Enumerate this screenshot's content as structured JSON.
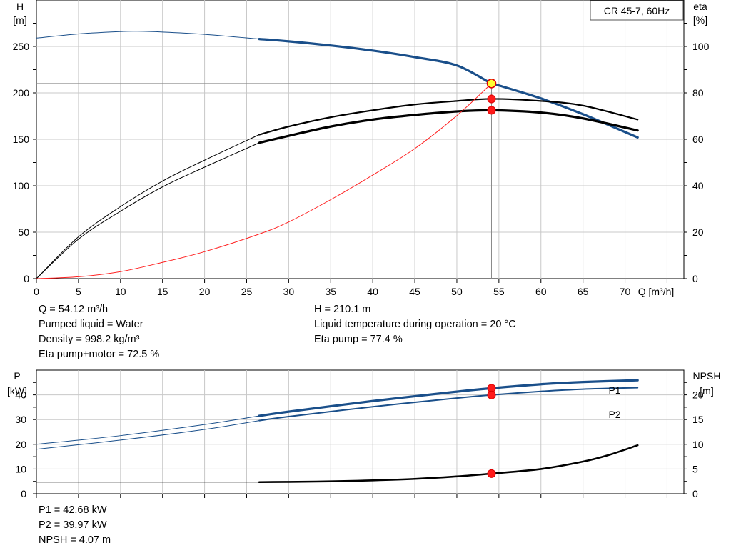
{
  "model_label": "CR 45-7, 60Hz",
  "chart_data": [
    {
      "type": "line",
      "name": "pump-curve",
      "x_label": "Q [m³/h]",
      "y_left_label": [
        "H",
        "[m]"
      ],
      "y_right_label": [
        "eta",
        "[%]"
      ],
      "xlim": [
        0,
        77
      ],
      "ylim_left": [
        0,
        300
      ],
      "ylim_right": [
        0,
        120
      ],
      "x_ticks": [
        0,
        5,
        10,
        15,
        20,
        25,
        30,
        35,
        40,
        45,
        50,
        55,
        60,
        65,
        70
      ],
      "y_left_ticks": [
        0,
        50,
        100,
        150,
        200,
        250
      ],
      "y_right_ticks": [
        0,
        20,
        40,
        60,
        80,
        100
      ],
      "grid": true,
      "series": [
        {
          "key": "head",
          "axis": "left",
          "color": "#1a4f8a",
          "thin_width": 1,
          "thick_width": 3.2,
          "thick_from": 26.5,
          "points": [
            [
              0,
              259
            ],
            [
              5,
              263.5
            ],
            [
              10,
              266
            ],
            [
              12,
              266.3
            ],
            [
              15,
              265.5
            ],
            [
              20,
              263
            ],
            [
              26.5,
              258
            ],
            [
              30,
              255.5
            ],
            [
              35,
              251
            ],
            [
              40,
              245.5
            ],
            [
              45,
              238.5
            ],
            [
              50,
              229.5
            ],
            [
              54.12,
              210.1
            ],
            [
              55,
              208
            ],
            [
              60,
              194
            ],
            [
              65,
              177
            ],
            [
              71.5,
              152
            ]
          ]
        },
        {
          "key": "eta_pump",
          "axis": "right",
          "color": "#000000",
          "thin_width": 1,
          "thick_width": 2.2,
          "thick_from": 26.5,
          "points": [
            [
              0,
              0
            ],
            [
              5,
              18
            ],
            [
              10,
              31
            ],
            [
              15,
              42
            ],
            [
              20,
              51
            ],
            [
              26.5,
              62
            ],
            [
              30,
              65.5
            ],
            [
              35,
              69.5
            ],
            [
              40,
              72.5
            ],
            [
              45,
              75
            ],
            [
              50,
              76.5
            ],
            [
              54.12,
              77.4
            ],
            [
              60,
              76.5
            ],
            [
              65,
              74.5
            ],
            [
              71.5,
              68.5
            ]
          ]
        },
        {
          "key": "eta_pump_motor",
          "axis": "right",
          "color": "#000000",
          "thin_width": 1,
          "thick_width": 3.2,
          "thick_from": 26.5,
          "points": [
            [
              0,
              0
            ],
            [
              5,
              17
            ],
            [
              10,
              29
            ],
            [
              15,
              39.5
            ],
            [
              20,
              48
            ],
            [
              26.5,
              58.5
            ],
            [
              30,
              61.5
            ],
            [
              35,
              65.5
            ],
            [
              40,
              68.5
            ],
            [
              45,
              70.5
            ],
            [
              50,
              72
            ],
            [
              54.12,
              72.5
            ],
            [
              60,
              71.5
            ],
            [
              65,
              69
            ],
            [
              71.5,
              63.8
            ]
          ]
        },
        {
          "key": "system_curve",
          "axis": "left",
          "color": "#ff2020",
          "thin_width": 1,
          "thick_width": 1,
          "thick_from": 999,
          "points": [
            [
              0,
              0
            ],
            [
              5,
              2
            ],
            [
              10,
              7.5
            ],
            [
              15,
              17.5
            ],
            [
              20,
              29
            ],
            [
              26.5,
              48
            ],
            [
              30,
              61
            ],
            [
              35,
              85
            ],
            [
              40,
              111.5
            ],
            [
              45,
              140
            ],
            [
              50,
              175.5
            ],
            [
              54.12,
              210.1
            ]
          ]
        }
      ],
      "operating_point": {
        "q": 54.12,
        "h": 210.1,
        "eta_pump": 77.4,
        "eta_pump_motor": 72.5
      }
    },
    {
      "type": "line",
      "name": "power-npsh",
      "y_left_label": [
        "P",
        "[kW]"
      ],
      "y_right_label": [
        "NPSH",
        "[m]"
      ],
      "xlim": [
        0,
        77
      ],
      "ylim_left": [
        0,
        50
      ],
      "ylim_right": [
        0,
        25
      ],
      "y_left_ticks": [
        0,
        10,
        20,
        30,
        40
      ],
      "y_right_ticks": [
        0,
        5,
        10,
        15,
        20
      ],
      "grid": true,
      "series": [
        {
          "key": "P1",
          "name": "P1",
          "axis": "left",
          "color": "#1a4f8a",
          "thin_width": 1,
          "thick_width": 3.2,
          "thick_from": 26.5,
          "points": [
            [
              0,
              20
            ],
            [
              10,
              23.5
            ],
            [
              20,
              28
            ],
            [
              26.5,
              31.5
            ],
            [
              30,
              33.2
            ],
            [
              40,
              37.5
            ],
            [
              50,
              41.3
            ],
            [
              54.12,
              42.68
            ],
            [
              60,
              44.3
            ],
            [
              65,
              45.2
            ],
            [
              71.5,
              45.9
            ]
          ]
        },
        {
          "key": "P2",
          "name": "P2",
          "axis": "left",
          "color": "#1a4f8a",
          "thin_width": 1,
          "thick_width": 2,
          "thick_from": 26.5,
          "points": [
            [
              0,
              18
            ],
            [
              10,
              21.7
            ],
            [
              20,
              26
            ],
            [
              26.5,
              29.6
            ],
            [
              30,
              31.2
            ],
            [
              40,
              35.2
            ],
            [
              50,
              38.7
            ],
            [
              54.12,
              39.97
            ],
            [
              60,
              41.4
            ],
            [
              65,
              42.3
            ],
            [
              71.5,
              42.9
            ]
          ]
        },
        {
          "key": "NPSH",
          "axis": "right",
          "color": "#000000",
          "thin_width": 1,
          "thick_width": 2.6,
          "thick_from": 26.5,
          "points": [
            [
              0,
              2.35
            ],
            [
              10,
              2.35
            ],
            [
              20,
              2.35
            ],
            [
              26.5,
              2.35
            ],
            [
              30,
              2.4
            ],
            [
              35,
              2.5
            ],
            [
              40,
              2.7
            ],
            [
              45,
              3.0
            ],
            [
              50,
              3.5
            ],
            [
              54.12,
              4.07
            ],
            [
              60,
              5.0
            ],
            [
              65,
              6.5
            ],
            [
              68,
              7.8
            ],
            [
              71.5,
              9.8
            ]
          ]
        }
      ],
      "operating_point": {
        "q": 54.12,
        "p1": 42.68,
        "p2": 39.97,
        "npsh": 4.07
      }
    }
  ],
  "info": {
    "left": [
      "Q = 54.12 m³/h",
      "Pumped liquid = Water",
      "Density = 998.2 kg/m³",
      "Eta pump+motor = 72.5 %"
    ],
    "right": [
      "H = 210.1 m",
      "Liquid temperature during operation = 20 °C",
      "Eta pump = 77.4 %"
    ],
    "bottom": [
      "P1 = 42.68 kW",
      "P2 = 39.97 kW",
      "NPSH = 4.07 m"
    ]
  }
}
